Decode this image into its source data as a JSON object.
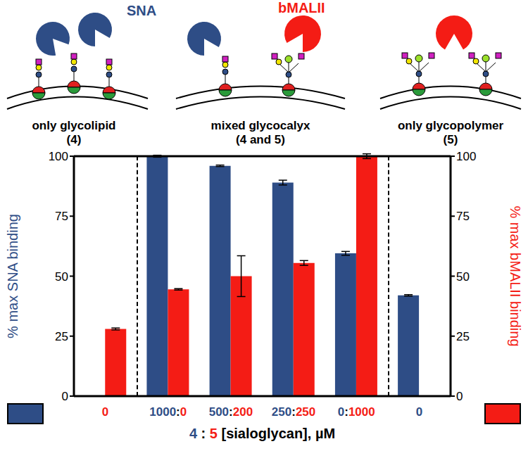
{
  "chart_data": {
    "type": "bar",
    "categories": [
      "0",
      "1000:0",
      "500:200",
      "250:250",
      "0:1000",
      "0"
    ],
    "x_label": "4 : 5 [sialoglycan], µM",
    "ylabel": "% max SNA binding",
    "y2label": "% max bMALII binding",
    "ylim": [
      0,
      100
    ],
    "yticks": [
      0,
      25,
      50,
      75,
      100
    ],
    "y2lim": [
      0,
      100
    ],
    "y2ticks": [
      0,
      25,
      50,
      75,
      100
    ],
    "series": [
      {
        "name": "SNA",
        "color": "#2e4d86",
        "values": [
          null,
          100,
          96,
          89,
          59.5,
          42
        ],
        "errors": [
          null,
          0.4,
          0.3,
          1,
          0.8,
          0.3
        ]
      },
      {
        "name": "bMALII",
        "color": "#f41c15",
        "axis": "y2",
        "values": [
          28,
          44.5,
          50,
          55.5,
          100,
          null
        ],
        "errors": [
          0.4,
          0.3,
          8.5,
          1,
          1,
          null
        ]
      }
    ]
  },
  "diagram": {
    "panels": [
      {
        "title": "only glycolipid",
        "subtitle": "(4)"
      },
      {
        "title": "mixed glycocalyx",
        "subtitle": "(4 and 5)"
      },
      {
        "title": "only glycopolymer",
        "subtitle": "(5)"
      }
    ]
  }
}
